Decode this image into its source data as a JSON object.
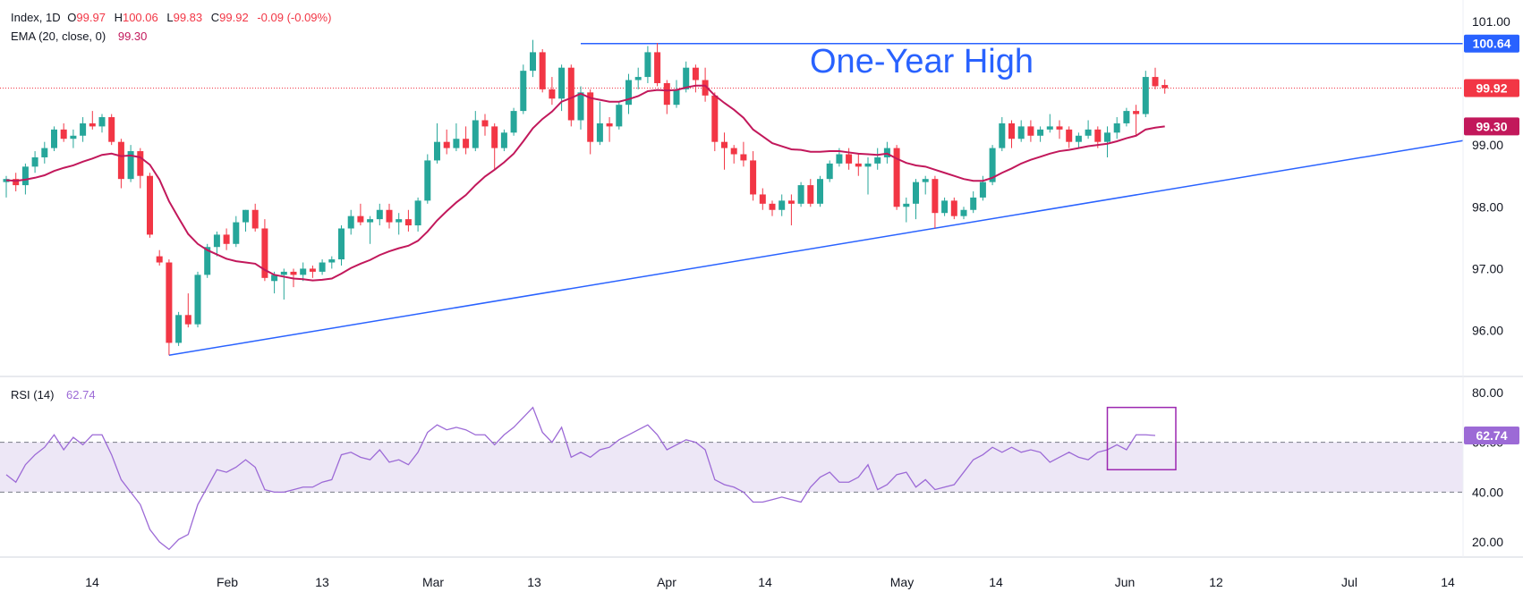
{
  "header": {
    "symbol_label": "Index, 1D",
    "o_label": "O",
    "o": "99.97",
    "h_label": "H",
    "h": "100.06",
    "l_label": "L",
    "l": "99.83",
    "c_label": "C",
    "c": "99.92",
    "change": "-0.09 (-0.09%)",
    "ema_label": "EMA (20, close, 0)",
    "ema": "99.30",
    "rsi_label": "RSI (14)",
    "rsi": "62.74"
  },
  "annotation": "One-Year High",
  "colors": {
    "up": "#26a69a",
    "down": "#f23645",
    "ema": "#c2185b",
    "trend": "#2962ff",
    "rsi": "#9c6ad6",
    "rsi_band": "#ede7f6",
    "last_price_tag": "#f23645",
    "rsi_box": "#9c27b0"
  },
  "chart_data": [
    {
      "type": "candlestick",
      "price_axis": {
        "ticks": [
          "101.00",
          "100.00",
          "99.00",
          "98.00",
          "97.00",
          "96.00"
        ],
        "range": [
          95.3,
          101.2
        ]
      },
      "time_axis": {
        "labels": [
          "14",
          "Feb",
          "13",
          "Mar",
          "13",
          "Apr",
          "14",
          "May",
          "14",
          "Jun",
          "12",
          "Jul",
          "14"
        ]
      },
      "tags": {
        "resistance": "100.64",
        "last": "99.92",
        "ema": "99.30"
      },
      "resistance_level": 100.64,
      "trendline": {
        "from": {
          "x": "Jan 27",
          "y": 95.6
        },
        "to": {
          "x": "Jul 16",
          "y": 99.07
        }
      },
      "ohlc": [
        [
          98.4,
          98.5,
          98.15,
          98.45
        ],
        [
          98.45,
          98.55,
          98.25,
          98.35
        ],
        [
          98.35,
          98.7,
          98.2,
          98.65
        ],
        [
          98.65,
          98.9,
          98.55,
          98.8
        ],
        [
          98.8,
          99.05,
          98.7,
          98.95
        ],
        [
          98.95,
          99.3,
          98.9,
          99.25
        ],
        [
          99.25,
          99.35,
          99.05,
          99.1
        ],
        [
          99.1,
          99.25,
          98.95,
          99.15
        ],
        [
          99.15,
          99.45,
          99.05,
          99.35
        ],
        [
          99.35,
          99.55,
          99.25,
          99.3
        ],
        [
          99.3,
          99.5,
          99.2,
          99.45
        ],
        [
          99.45,
          99.5,
          99.0,
          99.05
        ],
        [
          99.05,
          99.1,
          98.3,
          98.45
        ],
        [
          98.45,
          99.0,
          98.4,
          98.9
        ],
        [
          98.9,
          98.95,
          98.3,
          98.5
        ],
        [
          98.5,
          98.55,
          97.5,
          97.55
        ],
        [
          97.2,
          97.3,
          97.05,
          97.1
        ],
        [
          97.1,
          97.15,
          95.6,
          95.8
        ],
        [
          95.8,
          96.3,
          95.75,
          96.25
        ],
        [
          96.25,
          96.6,
          96.05,
          96.1
        ],
        [
          96.1,
          96.95,
          96.05,
          96.9
        ],
        [
          96.9,
          97.4,
          96.85,
          97.35
        ],
        [
          97.35,
          97.6,
          97.2,
          97.55
        ],
        [
          97.55,
          97.65,
          97.3,
          97.4
        ],
        [
          97.4,
          97.85,
          97.35,
          97.75
        ],
        [
          97.75,
          97.95,
          97.6,
          97.95
        ],
        [
          97.95,
          98.05,
          97.6,
          97.65
        ],
        [
          97.65,
          97.8,
          96.8,
          96.85
        ],
        [
          96.8,
          96.95,
          96.6,
          96.9
        ],
        [
          96.9,
          97.0,
          96.5,
          96.95
        ],
        [
          96.95,
          97.0,
          96.7,
          96.9
        ],
        [
          96.9,
          97.1,
          96.8,
          97.0
        ],
        [
          97.0,
          97.05,
          96.85,
          96.95
        ],
        [
          96.95,
          97.15,
          96.9,
          97.1
        ],
        [
          97.1,
          97.2,
          97.0,
          97.15
        ],
        [
          97.15,
          97.7,
          97.05,
          97.65
        ],
        [
          97.65,
          97.95,
          97.55,
          97.85
        ],
        [
          97.85,
          98.05,
          97.7,
          97.75
        ],
        [
          97.75,
          97.85,
          97.4,
          97.8
        ],
        [
          97.8,
          98.05,
          97.7,
          97.95
        ],
        [
          97.95,
          98.05,
          97.65,
          97.75
        ],
        [
          97.75,
          97.9,
          97.55,
          97.8
        ],
        [
          97.8,
          97.95,
          97.6,
          97.7
        ],
        [
          97.7,
          98.15,
          97.6,
          98.1
        ],
        [
          98.1,
          98.85,
          98.05,
          98.75
        ],
        [
          98.75,
          99.35,
          98.7,
          99.05
        ],
        [
          99.05,
          99.25,
          98.85,
          98.95
        ],
        [
          98.95,
          99.35,
          98.9,
          99.1
        ],
        [
          99.1,
          99.3,
          98.85,
          98.95
        ],
        [
          98.95,
          99.55,
          98.9,
          99.4
        ],
        [
          99.4,
          99.5,
          99.15,
          99.3
        ],
        [
          99.3,
          99.35,
          98.6,
          98.95
        ],
        [
          98.95,
          99.25,
          98.9,
          99.2
        ],
        [
          99.2,
          99.6,
          99.15,
          99.55
        ],
        [
          99.55,
          100.3,
          99.5,
          100.2
        ],
        [
          100.2,
          100.7,
          100.1,
          100.5
        ],
        [
          100.5,
          100.55,
          99.85,
          99.9
        ],
        [
          99.9,
          100.1,
          99.65,
          99.75
        ],
        [
          99.75,
          100.3,
          99.55,
          100.25
        ],
        [
          100.25,
          100.3,
          99.3,
          99.4
        ],
        [
          99.4,
          99.95,
          99.25,
          99.85
        ],
        [
          99.85,
          99.9,
          98.85,
          99.05
        ],
        [
          99.05,
          99.7,
          99.0,
          99.35
        ],
        [
          99.35,
          99.45,
          99.05,
          99.3
        ],
        [
          99.3,
          99.7,
          99.25,
          99.65
        ],
        [
          99.65,
          100.15,
          99.5,
          100.05
        ],
        [
          100.05,
          100.25,
          99.9,
          100.1
        ],
        [
          100.1,
          100.6,
          100.0,
          100.5
        ],
        [
          100.5,
          100.65,
          99.95,
          100.0
        ],
        [
          100.0,
          100.05,
          99.5,
          99.65
        ],
        [
          99.65,
          100.05,
          99.6,
          99.9
        ],
        [
          99.9,
          100.35,
          99.85,
          100.25
        ],
        [
          100.25,
          100.3,
          99.85,
          100.05
        ],
        [
          100.05,
          100.25,
          99.7,
          99.8
        ],
        [
          99.8,
          99.85,
          98.9,
          99.05
        ],
        [
          99.05,
          99.2,
          98.6,
          98.95
        ],
        [
          98.95,
          99.0,
          98.7,
          98.85
        ],
        [
          98.85,
          99.05,
          98.65,
          98.75
        ],
        [
          98.75,
          98.9,
          98.1,
          98.2
        ],
        [
          98.2,
          98.3,
          97.95,
          98.05
        ],
        [
          98.05,
          98.1,
          97.85,
          97.95
        ],
        [
          97.95,
          98.2,
          97.85,
          98.1
        ],
        [
          98.1,
          98.2,
          97.7,
          98.05
        ],
        [
          98.05,
          98.4,
          98.0,
          98.35
        ],
        [
          98.35,
          98.45,
          98.0,
          98.05
        ],
        [
          98.05,
          98.5,
          98.0,
          98.45
        ],
        [
          98.45,
          98.75,
          98.4,
          98.7
        ],
        [
          98.7,
          98.95,
          98.65,
          98.85
        ],
        [
          98.85,
          98.95,
          98.6,
          98.7
        ],
        [
          98.7,
          98.85,
          98.5,
          98.65
        ],
        [
          98.65,
          98.8,
          98.2,
          98.7
        ],
        [
          98.7,
          98.95,
          98.6,
          98.8
        ],
        [
          98.8,
          99.05,
          98.7,
          98.95
        ],
        [
          98.95,
          99.0,
          97.95,
          98.0
        ],
        [
          98.0,
          98.15,
          97.75,
          98.05
        ],
        [
          98.05,
          98.45,
          97.8,
          98.4
        ],
        [
          98.4,
          98.5,
          98.2,
          98.45
        ],
        [
          98.45,
          98.5,
          97.65,
          97.9
        ],
        [
          97.9,
          98.15,
          97.85,
          98.1
        ],
        [
          98.1,
          98.15,
          97.8,
          97.85
        ],
        [
          97.85,
          98.0,
          97.8,
          97.95
        ],
        [
          97.95,
          98.25,
          97.9,
          98.15
        ],
        [
          98.15,
          98.5,
          98.1,
          98.4
        ],
        [
          98.4,
          99.0,
          98.35,
          98.95
        ],
        [
          98.95,
          99.45,
          98.9,
          99.35
        ],
        [
          99.35,
          99.4,
          98.95,
          99.1
        ],
        [
          99.1,
          99.4,
          99.05,
          99.3
        ],
        [
          99.3,
          99.4,
          99.05,
          99.15
        ],
        [
          99.15,
          99.3,
          99.05,
          99.25
        ],
        [
          99.25,
          99.5,
          99.2,
          99.3
        ],
        [
          99.3,
          99.4,
          99.1,
          99.25
        ],
        [
          99.25,
          99.3,
          98.95,
          99.05
        ],
        [
          99.05,
          99.2,
          98.95,
          99.15
        ],
        [
          99.15,
          99.4,
          99.1,
          99.25
        ],
        [
          99.25,
          99.3,
          98.95,
          99.05
        ],
        [
          99.05,
          99.3,
          98.8,
          99.2
        ],
        [
          99.2,
          99.45,
          99.1,
          99.35
        ],
        [
          99.35,
          99.6,
          99.3,
          99.55
        ],
        [
          99.55,
          99.65,
          99.15,
          99.5
        ],
        [
          99.5,
          100.2,
          99.45,
          100.1
        ],
        [
          100.1,
          100.25,
          99.9,
          99.95
        ],
        [
          99.97,
          100.06,
          99.83,
          99.92
        ]
      ],
      "ema20": [
        98.43,
        98.42,
        98.44,
        98.47,
        98.51,
        98.58,
        98.63,
        98.67,
        98.73,
        98.78,
        98.84,
        98.86,
        98.82,
        98.83,
        98.8,
        98.68,
        98.44,
        98.09,
        97.82,
        97.56,
        97.4,
        97.3,
        97.23,
        97.16,
        97.12,
        97.1,
        97.08,
        96.98,
        96.9,
        96.87,
        96.84,
        96.83,
        96.81,
        96.82,
        96.84,
        96.92,
        97.01,
        97.08,
        97.14,
        97.22,
        97.28,
        97.33,
        97.37,
        97.45,
        97.6,
        97.78,
        97.93,
        98.07,
        98.19,
        98.35,
        98.49,
        98.6,
        98.72,
        98.86,
        99.06,
        99.27,
        99.42,
        99.54,
        99.7,
        99.76,
        99.83,
        99.76,
        99.73,
        99.7,
        99.7,
        99.74,
        99.79,
        99.87,
        99.89,
        99.88,
        99.89,
        99.93,
        99.96,
        99.96,
        99.8,
        99.68,
        99.57,
        99.44,
        99.25,
        99.14,
        99.03,
        98.98,
        98.93,
        98.92,
        98.89,
        98.89,
        98.9,
        98.9,
        98.88,
        98.86,
        98.85,
        98.84,
        98.86,
        98.78,
        98.71,
        98.67,
        98.65,
        98.6,
        98.55,
        98.5,
        98.45,
        98.42,
        98.42,
        98.47,
        98.55,
        98.62,
        98.7,
        98.76,
        98.81,
        98.86,
        98.9,
        98.92,
        98.95,
        98.98,
        99.0,
        99.02,
        99.06,
        99.11,
        99.15,
        99.25,
        99.28,
        99.3
      ]
    },
    {
      "type": "line",
      "name": "RSI (14)",
      "axis": {
        "ticks": [
          "80.00",
          "60.00",
          "40.00",
          "20.00"
        ],
        "range": [
          15,
          85
        ]
      },
      "band": [
        40,
        60
      ],
      "tag": "62.74",
      "values": [
        47,
        44,
        51,
        55,
        58,
        63,
        57,
        62,
        59,
        63,
        63,
        55,
        45,
        40,
        35,
        25,
        20,
        17,
        21,
        23,
        35,
        42,
        49,
        48,
        50,
        53,
        50,
        41,
        40,
        40,
        41,
        42,
        42,
        44,
        45,
        55,
        56,
        54,
        53,
        57,
        52,
        53,
        51,
        56,
        64,
        67,
        65,
        66,
        65,
        63,
        63,
        59,
        63,
        66,
        70,
        74,
        64,
        60,
        66,
        54,
        56,
        54,
        57,
        58,
        61,
        63,
        65,
        67,
        63,
        57,
        59,
        61,
        60,
        57,
        45,
        43,
        42,
        40,
        36,
        36,
        37,
        38,
        37,
        36,
        42,
        46,
        48,
        44,
        44,
        46,
        51,
        41,
        43,
        47,
        48,
        42,
        45,
        41,
        42,
        43,
        48,
        53,
        55,
        58,
        56,
        58,
        56,
        57,
        56,
        52,
        54,
        56,
        54,
        53,
        56,
        57,
        59,
        57,
        63,
        63,
        62.74
      ]
    }
  ]
}
